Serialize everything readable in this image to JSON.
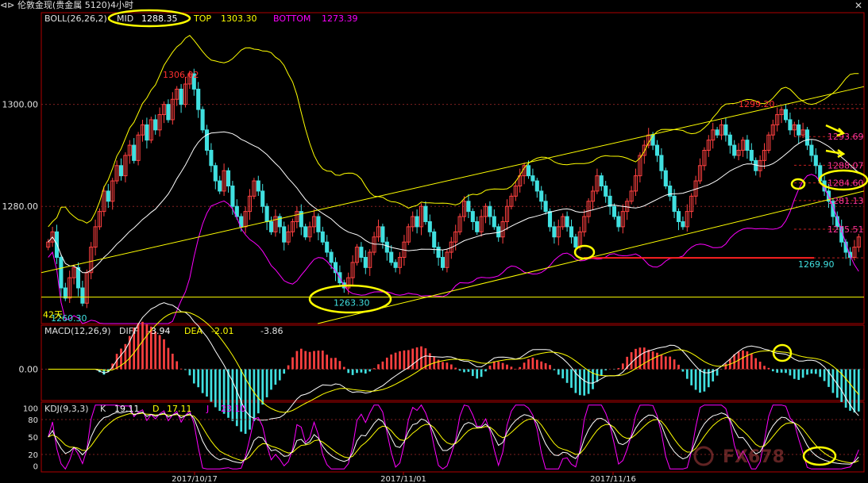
{
  "window": {
    "title": "伦敦金现(贵金属 5120)",
    "period": "4小时"
  },
  "colors": {
    "background": "#000000",
    "frame": "#b00000",
    "up_candle": "#ff4040",
    "down_candle": "#40e0e0",
    "boll_mid": "#ffffff",
    "boll_top": "#ffff00",
    "boll_bottom": "#ff00ff",
    "annotation": "#ffff00",
    "price_label_red": "#ff3030",
    "price_label_cyan": "#40e0e0",
    "price_label_magenta": "#ff3399"
  },
  "boll_header": {
    "name": "BOLL(26,26,2)",
    "mid_label": "MID",
    "mid_value": "1288.35",
    "top_label": "TOP",
    "top_value": "1303.30",
    "bottom_label": "BOTTOM",
    "bottom_value": "1273.39"
  },
  "macd_header": {
    "name": "MACD(12,26,9)",
    "diff_label": "DIFF",
    "diff_value": "-3.94",
    "dea_label": "DEA",
    "dea_value": "-2.01",
    "macd_value": "-3.86"
  },
  "kdj_header": {
    "name": "KDJ(9,3,3)",
    "k_label": "K",
    "k_value": "19.11",
    "d_label": "D",
    "d_value": "17.11",
    "j_label": "J",
    "j_value": "23.10"
  },
  "chart_data": [
    {
      "type": "candlestick",
      "panel": "price",
      "ylim": [
        1257,
        1318
      ],
      "y_ticks": [
        "1300.00",
        "1280.00"
      ],
      "x_ticks": [
        "2017/10/17",
        "2017/11/01",
        "2017/11/16"
      ],
      "n_bars": 190,
      "candles_close_series": [
        1273,
        1275,
        1270,
        1264,
        1262,
        1266,
        1268,
        1264,
        1261,
        1267,
        1272,
        1276,
        1279,
        1283,
        1281,
        1285,
        1288,
        1286,
        1290,
        1292,
        1289,
        1294,
        1296,
        1293,
        1297,
        1295,
        1298,
        1300,
        1297,
        1301,
        1303,
        1300,
        1304,
        1306,
        1303,
        1299,
        1295,
        1291,
        1288,
        1285,
        1283,
        1287,
        1284,
        1280,
        1278,
        1276,
        1279,
        1282,
        1285,
        1283,
        1280,
        1277,
        1275,
        1278,
        1276,
        1273,
        1275,
        1277,
        1279,
        1276,
        1274,
        1276,
        1278,
        1275,
        1273,
        1271,
        1269,
        1267,
        1265,
        1264,
        1266,
        1269,
        1272,
        1270,
        1268,
        1271,
        1274,
        1276,
        1273,
        1271,
        1269,
        1268,
        1270,
        1273,
        1276,
        1278,
        1276,
        1280,
        1277,
        1275,
        1272,
        1270,
        1268,
        1271,
        1273,
        1275,
        1278,
        1281,
        1279,
        1277,
        1275,
        1278,
        1280,
        1278,
        1276,
        1274,
        1277,
        1280,
        1282,
        1284,
        1286,
        1288,
        1286,
        1285,
        1283,
        1281,
        1279,
        1276,
        1274,
        1276,
        1278,
        1276,
        1274,
        1272,
        1275,
        1278,
        1281,
        1283,
        1286,
        1284,
        1282,
        1280,
        1278,
        1276,
        1279,
        1281,
        1283,
        1286,
        1290,
        1292,
        1294,
        1292,
        1290,
        1287,
        1284,
        1282,
        1279,
        1277,
        1276,
        1279,
        1282,
        1285,
        1288,
        1291,
        1293,
        1295,
        1294,
        1296,
        1294,
        1292,
        1290,
        1291,
        1293,
        1291,
        1289,
        1287,
        1289,
        1291,
        1294,
        1296,
        1298,
        1299,
        1297,
        1295,
        1296,
        1294,
        1295,
        1292,
        1290,
        1288,
        1285,
        1283,
        1281,
        1278,
        1276,
        1273,
        1271,
        1270,
        1272,
        1274
      ],
      "annotations": [
        {
          "label": "1306.02",
          "value": 1306.02,
          "color": "red"
        },
        {
          "label": "1299.20",
          "value": 1299.2,
          "color": "red"
        },
        {
          "label": "1293.69",
          "value": 1293.69,
          "color": "magenta"
        },
        {
          "label": "1288.07",
          "value": 1288.07,
          "color": "magenta"
        },
        {
          "label": "1284.60",
          "value": 1284.6,
          "color": "magenta"
        },
        {
          "label": "1281.13",
          "value": 1281.13,
          "color": "magenta"
        },
        {
          "label": "1275.51",
          "value": 1275.51,
          "color": "magenta"
        },
        {
          "label": "1269.90",
          "value": 1269.9,
          "color": "cyan"
        },
        {
          "label": "1263.30",
          "value": 1263.3,
          "color": "cyan"
        },
        {
          "label": "1260.30",
          "value": 1260.3,
          "color": "cyan"
        },
        {
          "label": "42天",
          "value": null,
          "color": "yellow"
        }
      ],
      "series": [
        {
          "name": "MID",
          "color": "#ffffff"
        },
        {
          "name": "TOP",
          "color": "#ffff00"
        },
        {
          "name": "BOTTOM",
          "color": "#ff00ff"
        }
      ]
    },
    {
      "type": "bar",
      "panel": "macd",
      "y_ticks": [
        "0.00"
      ],
      "ylim": [
        -6,
        6
      ]
    },
    {
      "type": "line",
      "panel": "kdj",
      "y_ticks": [
        "100",
        "80",
        "50",
        "20",
        "0"
      ],
      "ylim": [
        -10,
        110
      ]
    }
  ],
  "watermark": "FX678"
}
